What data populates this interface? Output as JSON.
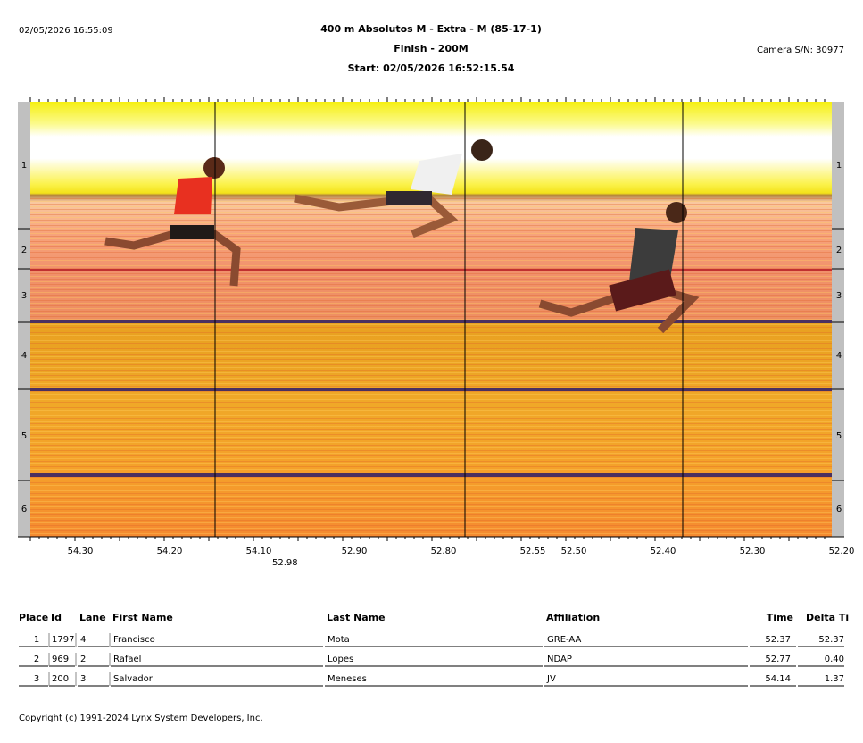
{
  "header": {
    "timestamp": "02/05/2026 16:55:09",
    "title_lines": [
      "400 m  Absolutos M - Extra - M (85-17-1)",
      "Finish - 200M",
      "Start: 02/05/2026 16:52:15.54"
    ],
    "camera": "Camera S/N: 30977"
  },
  "lanes": [
    "1",
    "2",
    "3",
    "4",
    "5",
    "6"
  ],
  "time_axis": {
    "labels": [
      "54.30",
      "54.20",
      "54.10",
      "52.90",
      "52.80",
      "52.55",
      "52.50",
      "52.40",
      "52.30",
      "52.20"
    ],
    "extra_label": "52.98"
  },
  "table": {
    "headers": [
      "Place",
      "Id",
      "Lane",
      "First Name",
      "Last Name",
      "Affiliation",
      "Time",
      "Delta Ti"
    ],
    "rows": [
      [
        "1",
        "1797",
        "4",
        "Francisco",
        "Mota",
        "GRE-AA",
        "52.37",
        "52.37"
      ],
      [
        "2",
        "969",
        "2",
        "Rafael",
        "Lopes",
        "NDAP",
        "52.77",
        "0.40"
      ],
      [
        "3",
        "200",
        "3",
        "Salvador",
        "Meneses",
        "JV",
        "54.14",
        "1.37"
      ]
    ]
  },
  "footer": {
    "copyright": "Copyright (c) 1991-2024 Lynx System Developers, Inc."
  }
}
